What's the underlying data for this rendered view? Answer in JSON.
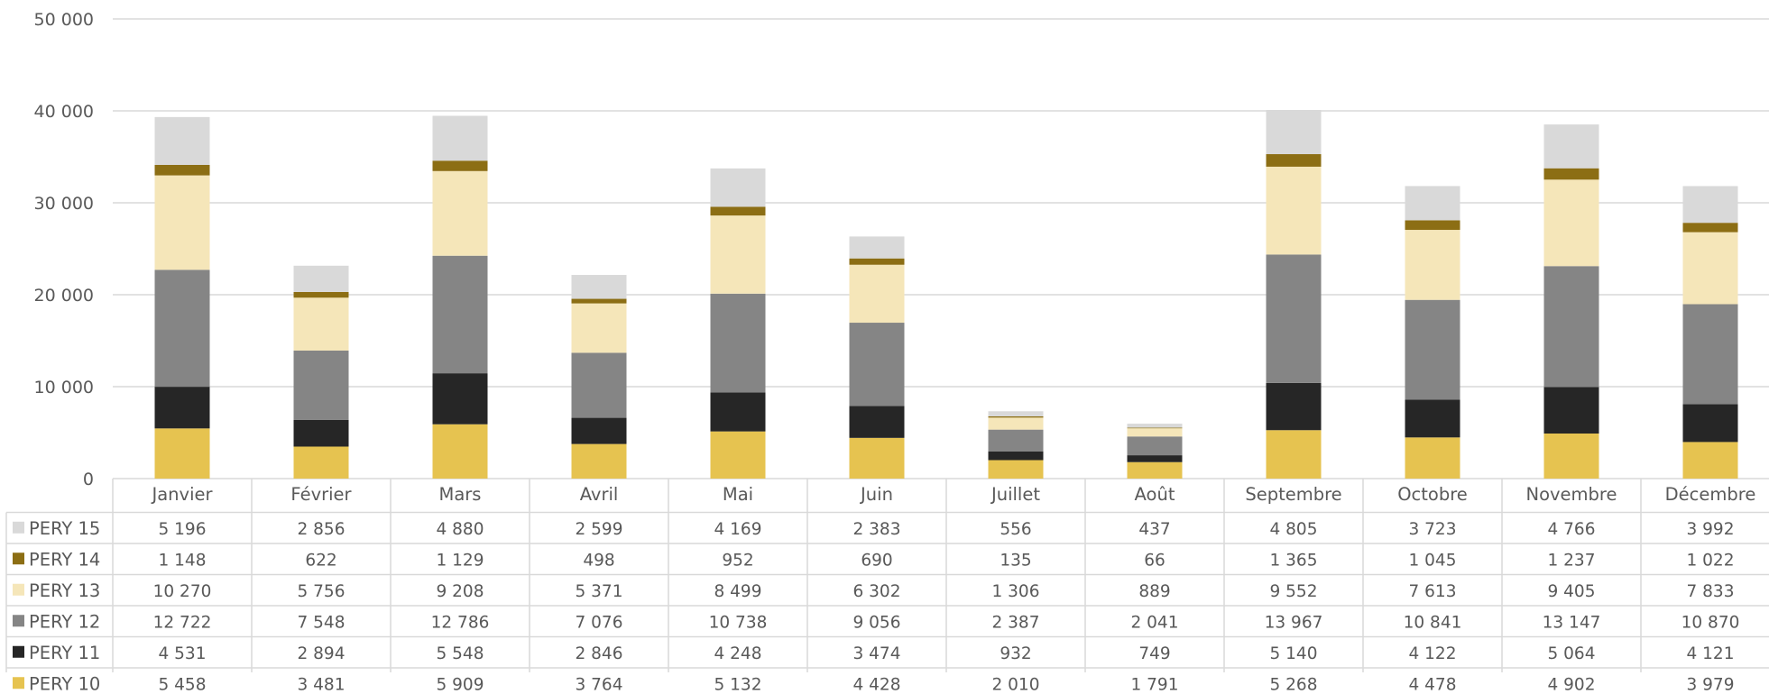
{
  "chart_data": {
    "type": "bar",
    "stacked": true,
    "categories": [
      "Janvier",
      "Février",
      "Mars",
      "Avril",
      "Mai",
      "Juin",
      "Juillet",
      "Août",
      "Septembre",
      "Octobre",
      "Novembre",
      "Décembre"
    ],
    "ylim": [
      0,
      50000
    ],
    "yticks": [
      0,
      10000,
      20000,
      30000,
      40000,
      50000
    ],
    "ytick_labels": [
      "0",
      "10 000",
      "20 000",
      "30 000",
      "40 000",
      "50 000"
    ],
    "grid": true,
    "legend": "data-table",
    "series": [
      {
        "name": "PERY 10",
        "color": "#E6C350",
        "values": [
          5458,
          3481,
          5909,
          3764,
          5132,
          4428,
          2010,
          1791,
          5268,
          4478,
          4902,
          3979
        ],
        "labels": [
          "5 458",
          "3 481",
          "5 909",
          "3 764",
          "5 132",
          "4 428",
          "2 010",
          "1 791",
          "5 268",
          "4 478",
          "4 902",
          "3 979"
        ]
      },
      {
        "name": "PERY 11",
        "color": "#262626",
        "values": [
          4531,
          2894,
          5548,
          2846,
          4248,
          3474,
          932,
          749,
          5140,
          4122,
          5064,
          4121
        ],
        "labels": [
          "4 531",
          "2 894",
          "5 548",
          "2 846",
          "4 248",
          "3 474",
          "932",
          "749",
          "5 140",
          "4 122",
          "5 064",
          "4 121"
        ]
      },
      {
        "name": "PERY 12",
        "color": "#858585",
        "values": [
          12722,
          7548,
          12786,
          7076,
          10738,
          9056,
          2387,
          2041,
          13967,
          10841,
          13147,
          10870
        ],
        "labels": [
          "12 722",
          "7 548",
          "12 786",
          "7 076",
          "10 738",
          "9 056",
          "2 387",
          "2 041",
          "13 967",
          "10 841",
          "13 147",
          "10 870"
        ]
      },
      {
        "name": "PERY 13",
        "color": "#F5E6B9",
        "values": [
          10270,
          5756,
          9208,
          5371,
          8499,
          6302,
          1306,
          889,
          9552,
          7613,
          9405,
          7833
        ],
        "labels": [
          "10 270",
          "5 756",
          "9 208",
          "5 371",
          "8 499",
          "6 302",
          "1 306",
          "889",
          "9 552",
          "7 613",
          "9 405",
          "7 833"
        ]
      },
      {
        "name": "PERY 14",
        "color": "#8C6E14",
        "values": [
          1148,
          622,
          1129,
          498,
          952,
          690,
          135,
          66,
          1365,
          1045,
          1237,
          1022
        ],
        "labels": [
          "1 148",
          "622",
          "1 129",
          "498",
          "952",
          "690",
          "135",
          "66",
          "1 365",
          "1 045",
          "1 237",
          "1 022"
        ]
      },
      {
        "name": "PERY 15",
        "color": "#D9D9D9",
        "values": [
          5196,
          2856,
          4880,
          2599,
          4169,
          2383,
          556,
          437,
          4805,
          3723,
          4766,
          3992
        ],
        "labels": [
          "5 196",
          "2 856",
          "4 880",
          "2 599",
          "4 169",
          "2 383",
          "556",
          "437",
          "4 805",
          "3 723",
          "4 766",
          "3 992"
        ]
      }
    ]
  },
  "colors": {
    "gridline": "#D9D9D9",
    "table_border": "#D9D9D9",
    "text": "#595959"
  }
}
